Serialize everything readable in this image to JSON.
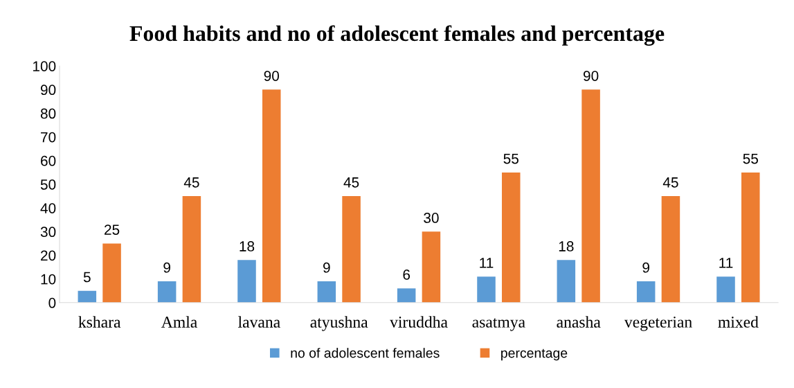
{
  "chart_data": {
    "type": "bar",
    "title": "Food habits and no of adolescent females and percentage",
    "categories": [
      "kshara",
      "Amla",
      "lavana",
      "atyushna",
      "viruddha",
      "asatmya",
      "anasha",
      "vegeterian",
      "mixed"
    ],
    "series": [
      {
        "name": "no of adolescent females",
        "color": "#5b9bd5",
        "values": [
          5,
          9,
          18,
          9,
          6,
          11,
          18,
          9,
          11
        ]
      },
      {
        "name": "percentage",
        "color": "#ed7d31",
        "values": [
          25,
          45,
          90,
          45,
          30,
          55,
          90,
          45,
          55
        ]
      }
    ],
    "ylim": [
      0,
      100
    ],
    "yticks": [
      0,
      10,
      20,
      30,
      40,
      50,
      60,
      70,
      80,
      90,
      100
    ],
    "data_labels": true,
    "grid": false,
    "legend": "bottom"
  }
}
